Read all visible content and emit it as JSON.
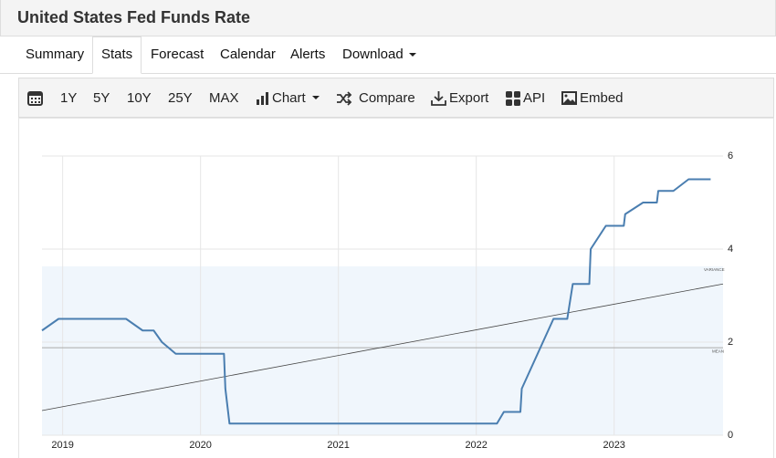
{
  "header": {
    "title": "United States Fed Funds Rate"
  },
  "tabs": [
    "Summary",
    "Stats",
    "Forecast",
    "Calendar",
    "Alerts",
    "Download"
  ],
  "toolbar": [
    "1Y",
    "5Y",
    "10Y",
    "25Y",
    "MAX",
    "Chart",
    "Compare",
    "Export",
    "API",
    "Embed"
  ],
  "chart_data": {
    "type": "line",
    "series": [
      {
        "color": "#4a7eb0",
        "x": [
          2018.85,
          2018.97,
          2019.46,
          2019.58,
          2019.66,
          2019.72,
          2019.82,
          2020.17,
          2020.18,
          2020.21,
          2022.15,
          2022.2,
          2022.32,
          2022.33,
          2022.56,
          2022.66,
          2022.7,
          2022.82,
          2022.83,
          2022.94,
          2023.07,
          2023.08,
          2023.21,
          2023.31,
          2023.32,
          2023.43,
          2023.54,
          2023.7
        ],
        "values": [
          2.25,
          2.5,
          2.5,
          2.25,
          2.25,
          2.0,
          1.75,
          1.75,
          1.0,
          0.25,
          0.25,
          0.5,
          0.5,
          1.0,
          2.5,
          2.5,
          3.25,
          3.25,
          4.0,
          4.5,
          4.5,
          4.75,
          5.0,
          5.0,
          5.25,
          5.25,
          5.5,
          5.5
        ]
      }
    ],
    "trend": {
      "x": [
        2018.85,
        2023.79
      ],
      "values": [
        0.53,
        3.25
      ]
    },
    "mean": 1.88,
    "variance_upper": 3.63,
    "annotations": [
      "VARIANCE",
      "MEAN"
    ],
    "xlim": [
      2018.85,
      2023.79
    ],
    "xticks": [
      2019,
      2020,
      2021,
      2022,
      2023
    ],
    "ylim": [
      0,
      6
    ],
    "yticks": [
      0,
      2,
      4,
      6
    ],
    "grid": true
  }
}
